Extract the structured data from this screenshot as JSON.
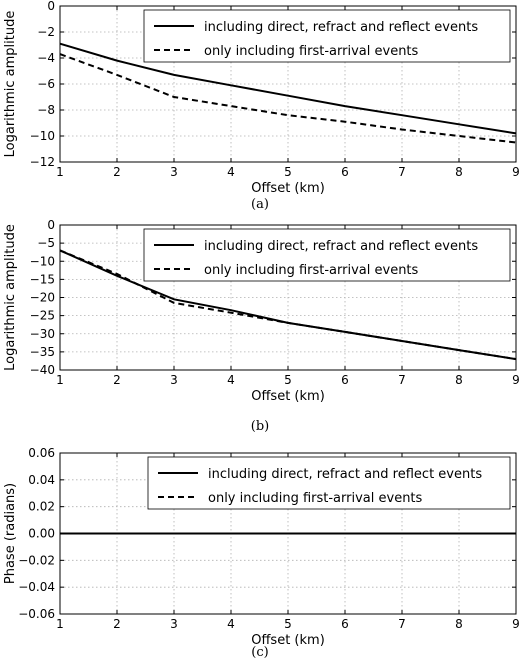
{
  "chart_data": [
    {
      "type": "line",
      "caption": "(a)",
      "xlabel": "Offset (km)",
      "ylabel": "Logarithmic amplitude",
      "xlim": [
        1,
        9
      ],
      "ylim": [
        -12,
        0
      ],
      "xticks": [
        "1",
        "2",
        "3",
        "4",
        "5",
        "6",
        "7",
        "8",
        "9"
      ],
      "yticks": [
        "0",
        "−2",
        "−4",
        "−6",
        "−8",
        "−10",
        "−12"
      ],
      "grid": true,
      "legend_position": "top-right",
      "series": [
        {
          "name": "including direct, refract and reflect events",
          "style": "solid",
          "x": [
            1,
            2,
            3,
            4,
            5,
            6,
            7,
            8,
            9
          ],
          "y": [
            -2.9,
            -4.2,
            -5.3,
            -6.1,
            -6.9,
            -7.7,
            -8.4,
            -9.1,
            -9.8
          ]
        },
        {
          "name": "only including first-arrival events",
          "style": "dashed",
          "x": [
            1,
            2,
            3,
            4,
            5,
            6,
            7,
            8,
            9
          ],
          "y": [
            -3.7,
            -5.3,
            -7.0,
            -7.7,
            -8.4,
            -8.9,
            -9.5,
            -10.0,
            -10.5
          ]
        }
      ]
    },
    {
      "type": "line",
      "caption": "(b)",
      "xlabel": "Offset (km)",
      "ylabel": "Logarithmic amplitude",
      "xlim": [
        1,
        9
      ],
      "ylim": [
        -40,
        0
      ],
      "xticks": [
        "1",
        "2",
        "3",
        "4",
        "5",
        "6",
        "7",
        "8",
        "9"
      ],
      "yticks": [
        "0",
        "−5",
        "−10",
        "−15",
        "−20",
        "−25",
        "−30",
        "−35",
        "−40"
      ],
      "grid": true,
      "legend_position": "top-right",
      "series": [
        {
          "name": "including direct, refract and reflect events",
          "style": "solid",
          "x": [
            1,
            2,
            3,
            4,
            5,
            6,
            7,
            8,
            9
          ],
          "y": [
            -7,
            -14,
            -20.5,
            -23.5,
            -27,
            -29.5,
            -32,
            -34.5,
            -37
          ]
        },
        {
          "name": "only including first-arrival events",
          "style": "dashed",
          "x": [
            1,
            2,
            3,
            4,
            5,
            6,
            7,
            8,
            9
          ],
          "y": [
            -7,
            -13.5,
            -21.5,
            -24.2,
            -27,
            -29.5,
            -32,
            -34.5,
            -37
          ]
        }
      ]
    },
    {
      "type": "line",
      "caption": "(c)",
      "xlabel": "Offset (km)",
      "ylabel": "Phase (radians)",
      "xlim": [
        1,
        9
      ],
      "ylim": [
        -0.06,
        0.06
      ],
      "xticks": [
        "1",
        "2",
        "3",
        "4",
        "5",
        "6",
        "7",
        "8",
        "9"
      ],
      "yticks": [
        "0.06",
        "0.04",
        "0.02",
        "0.00",
        "−0.02",
        "−0.04",
        "−0.06"
      ],
      "grid": true,
      "legend_position": "top-right",
      "series": [
        {
          "name": "including direct, refract and reflect events",
          "style": "solid",
          "x": [
            1,
            2,
            3,
            4,
            5,
            6,
            7,
            8,
            9
          ],
          "y": [
            0,
            0,
            0,
            0,
            0,
            0,
            0,
            0,
            0
          ]
        },
        {
          "name": "only including first-arrival events",
          "style": "dashed",
          "x": [
            1,
            2,
            3,
            4,
            5,
            6,
            7,
            8,
            9
          ],
          "y": [
            0,
            0,
            0,
            0,
            0,
            0,
            0,
            0,
            0
          ]
        }
      ]
    }
  ]
}
